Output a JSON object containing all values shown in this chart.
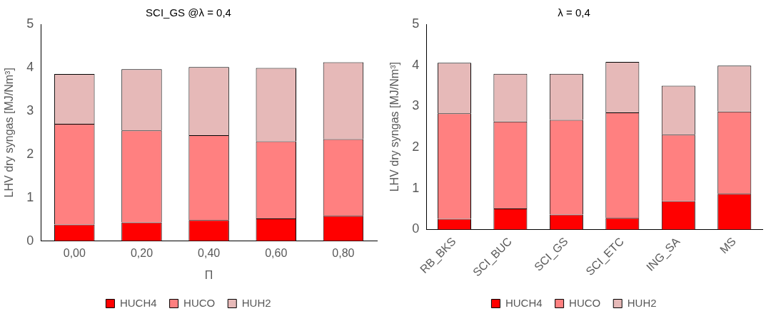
{
  "chart_data": [
    {
      "type": "bar",
      "title": "SCI_GS @λ = 0,4",
      "xlabel": "Π",
      "ylabel": "LHV dry syngas [MJ/Nm³]",
      "categories": [
        "0,00",
        "0,20",
        "0,40",
        "0,60",
        "0,80"
      ],
      "stacked": true,
      "ylim": [
        0,
        5
      ],
      "yticks": [
        0,
        1,
        2,
        3,
        4,
        5
      ],
      "grid": false,
      "legend": "bottom",
      "series": [
        {
          "name": "HUCH4",
          "color": "#ff0000",
          "values": [
            0.38,
            0.43,
            0.48,
            0.52,
            0.58
          ]
        },
        {
          "name": "HUCO",
          "color": "#ff8080",
          "values": [
            2.32,
            2.12,
            1.96,
            1.78,
            1.77
          ]
        },
        {
          "name": "HUH2",
          "color": "#e6b9b8",
          "values": [
            1.15,
            1.41,
            1.57,
            1.69,
            1.77
          ]
        }
      ]
    },
    {
      "type": "bar",
      "title": "λ = 0,4",
      "ylabel": "LHV dry syngas [MJ/Nm³]",
      "categories": [
        "RB_BKS",
        "SCI_BUC",
        "SCI_GS",
        "SCI_ETC",
        "ING_SA",
        "MS"
      ],
      "stacked": true,
      "ylim": [
        0,
        5
      ],
      "yticks": [
        0,
        1,
        2,
        3,
        4,
        5
      ],
      "grid": false,
      "legend": "bottom",
      "series": [
        {
          "name": "HUCH4",
          "color": "#ff0000",
          "values": [
            0.26,
            0.51,
            0.36,
            0.28,
            0.69,
            0.87
          ]
        },
        {
          "name": "HUCO",
          "color": "#ff8080",
          "values": [
            2.57,
            2.12,
            2.31,
            2.57,
            1.62,
            2.0
          ]
        },
        {
          "name": "HUH2",
          "color": "#e6b9b8",
          "values": [
            1.23,
            1.16,
            1.12,
            1.23,
            1.19,
            1.12
          ]
        }
      ]
    }
  ]
}
